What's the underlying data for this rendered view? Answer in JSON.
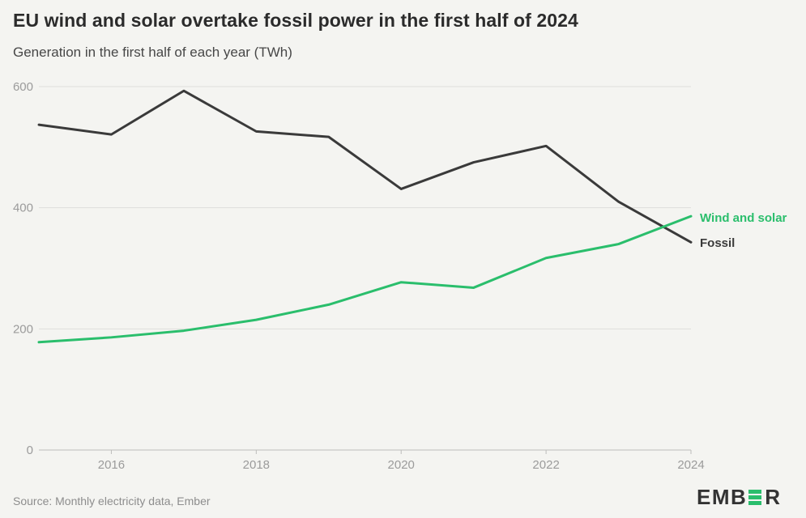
{
  "header": {
    "title": "EU wind and solar overtake fossil power in the first half of 2024",
    "subtitle": "Generation in the first half of each year (TWh)"
  },
  "chart_data": {
    "type": "line",
    "title": "EU wind and solar overtake fossil power in the first half of 2024",
    "xlabel": "",
    "ylabel": "Generation in the first half of each year (TWh)",
    "x": [
      2015,
      2016,
      2017,
      2018,
      2019,
      2020,
      2021,
      2022,
      2023,
      2024
    ],
    "series": [
      {
        "name": "Fossil",
        "color": "#3a3a3a",
        "values": [
          537,
          521,
          593,
          526,
          517,
          431,
          475,
          502,
          410,
          343
        ]
      },
      {
        "name": "Wind and solar",
        "color": "#2abe6c",
        "values": [
          178,
          186,
          197,
          215,
          240,
          277,
          268,
          317,
          340,
          386
        ]
      }
    ],
    "xlim": [
      2015,
      2024
    ],
    "ylim": [
      0,
      600
    ],
    "yticks": [
      0,
      200,
      400,
      600
    ],
    "xticks": [
      2016,
      2018,
      2020,
      2022,
      2024
    ],
    "grid": "horizontal",
    "legend_position": "end-of-line-labels-right"
  },
  "footer": {
    "source": "Source: Monthly electricity data, Ember",
    "logo_left": "EMB",
    "logo_right": "R"
  },
  "colors": {
    "background": "#f4f4f1",
    "wind_solar": "#2abe6c",
    "fossil": "#3a3a3a",
    "grid": "#dededb",
    "axis": "#bdbdbb",
    "tick_text": "#9b9b9b",
    "logo_dark": "#333333",
    "logo_green": "#2abe6c"
  }
}
